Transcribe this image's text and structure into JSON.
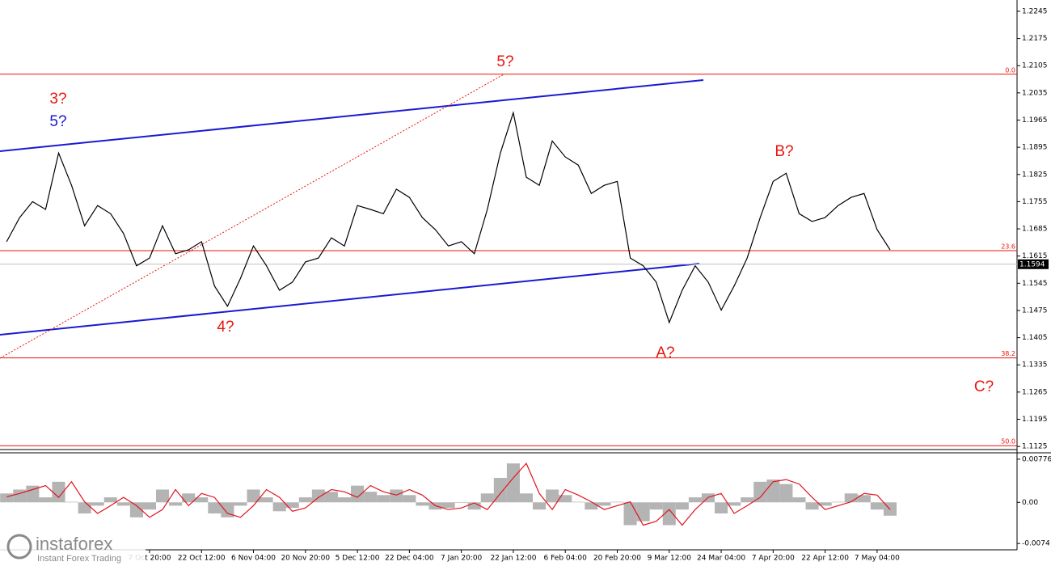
{
  "chart_data": [
    {
      "type": "line",
      "series": [
        {
          "color": "#000000",
          "values": [
            1.1652,
            1.1714,
            1.1755,
            1.1735,
            1.188,
            1.1797,
            1.1693,
            1.1745,
            1.1724,
            1.1673,
            1.159,
            1.161,
            1.1693,
            1.1621,
            1.1631,
            1.1652,
            1.1538,
            1.1486,
            1.1558,
            1.1641,
            1.159,
            1.1527,
            1.1548,
            1.16,
            1.161,
            1.1662,
            1.1641,
            1.1745,
            1.1735,
            1.1724,
            1.1787,
            1.1766,
            1.1714,
            1.1683,
            1.1641,
            1.1652,
            1.1621,
            1.1735,
            1.188,
            1.1984,
            1.1818,
            1.1797,
            1.1911,
            1.187,
            1.1849,
            1.1776,
            1.1797,
            1.1807,
            1.161,
            1.159,
            1.1548,
            1.1444,
            1.1527,
            1.159,
            1.1548,
            1.1476,
            1.1538,
            1.161,
            1.1714,
            1.1807,
            1.1828,
            1.1724,
            1.1704,
            1.1714,
            1.1745,
            1.1766,
            1.1776,
            1.1683,
            1.1631
          ]
        }
      ],
      "ylim": [
        1.1117,
        1.2274
      ],
      "yticks": [
        1.2245,
        1.2175,
        1.2105,
        1.2035,
        1.1965,
        1.1895,
        1.1825,
        1.1755,
        1.1685,
        1.1615,
        1.1545,
        1.1475,
        1.1405,
        1.1335,
        1.1265,
        1.1195,
        1.1125
      ],
      "fib_levels": [
        {
          "value": 1.2083,
          "label": "0.0"
        },
        {
          "value": 1.1629,
          "label": "23.6"
        },
        {
          "value": 1.1353,
          "label": "38.2"
        },
        {
          "value": 1.1127,
          "label": "50.0"
        }
      ],
      "fib_color": "#e8140c",
      "last_price": 1.1594,
      "annotations": [
        "3?",
        "5?",
        "5?",
        "4?",
        "A?",
        "B?",
        "C?"
      ]
    },
    {
      "type": "bar",
      "categories": [
        null,
        null,
        null,
        null,
        null,
        null,
        null,
        null,
        null,
        null,
        null,
        "7 Oct 20:00",
        null,
        null,
        null,
        "22 Oct 12:00",
        null,
        null,
        null,
        "6 Nov 04:00",
        null,
        null,
        null,
        "20 Nov 20:00",
        null,
        null,
        null,
        "5 Dec 12:00",
        null,
        null,
        null,
        "22 Dec 04:00",
        null,
        null,
        null,
        "7 Jan 20:00",
        null,
        null,
        null,
        "22 Jan 12:00",
        null,
        null,
        null,
        "6 Feb 04:00",
        null,
        null,
        null,
        "20 Feb 20:00",
        null,
        null,
        null,
        "9 Mar 12:00",
        null,
        null,
        null,
        "24 Mar 04:00",
        null,
        null,
        null,
        "7 Apr 20:00",
        null,
        null,
        null,
        "22 Apr 12:00",
        null,
        null,
        null,
        "7 May 04:00",
        null
      ],
      "series": [
        {
          "color": "#b4b4b4",
          "values": [
            0.0016,
            0.0023,
            0.003,
            0.0009,
            0.0037,
            0.0001,
            -0.002,
            -0.0006,
            0.0009,
            -0.0006,
            -0.0027,
            -0.0013,
            0.0023,
            -0.0006,
            0.0016,
            0.0009,
            -0.002,
            -0.0027,
            -0.0006,
            0.0023,
            0.0009,
            -0.0016,
            -0.001,
            0.0009,
            0.0023,
            0.0019,
            0.0009,
            0.003,
            0.0019,
            0.0013,
            0.0023,
            0.0013,
            -0.0006,
            -0.0013,
            -0.001,
            -0.0001,
            -0.0013,
            0.0016,
            0.0044,
            0.007,
            0.0016,
            -0.0013,
            0.0023,
            0.0013,
            0.0001,
            -0.0013,
            -0.0006,
            0.0001,
            -0.0041,
            -0.0034,
            -0.0013,
            -0.0041,
            -0.0013,
            0.0009,
            0.0016,
            -0.002,
            -0.0006,
            0.0009,
            0.0037,
            0.0041,
            0.0033,
            0.0009,
            -0.0013,
            -0.0006,
            0.0001,
            0.0016,
            0.0013,
            -0.0013,
            -0.0024
          ]
        },
        {
          "color": "#e0141e",
          "values": [
            0.001,
            0.0016,
            0.0023,
            0.003,
            0.0009,
            0.0037,
            0.0001,
            -0.002,
            -0.0006,
            0.0009,
            -0.0006,
            -0.0027,
            -0.0013,
            0.0023,
            -0.0006,
            0.0016,
            0.0009,
            -0.002,
            -0.0027,
            -0.0006,
            0.0023,
            0.0009,
            -0.0016,
            -0.001,
            0.0009,
            0.0023,
            0.0019,
            0.0009,
            0.003,
            0.0019,
            0.0013,
            0.0023,
            0.0013,
            -0.0006,
            -0.0013,
            -0.001,
            -0.0001,
            -0.0013,
            0.0016,
            0.0044,
            0.007,
            0.0016,
            -0.0013,
            0.0023,
            0.0013,
            0.0001,
            -0.0013,
            -0.0006,
            0.0001,
            -0.0041,
            -0.0034,
            -0.0013,
            -0.0041,
            -0.0013,
            0.0009,
            0.0016,
            -0.002,
            -0.0006,
            0.0009,
            0.0037,
            0.0041,
            0.0033,
            0.0009,
            -0.0013,
            -0.0006,
            0.0001,
            0.0016,
            0.0013,
            -0.0013
          ]
        }
      ],
      "ylim": [
        -0.00854,
        0.00862
      ],
      "yticks": [
        0.00776,
        {
          "value": 0,
          "label": "0.00"
        },
        -0.0074
      ]
    }
  ],
  "watermark": {
    "brand": "instaforex",
    "tagline": "Instant Forex Trading"
  }
}
